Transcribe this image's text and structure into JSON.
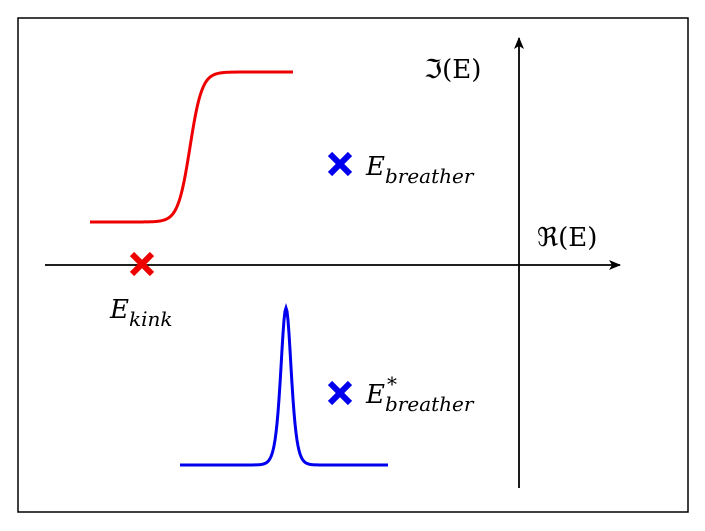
{
  "axes": {
    "imaginary_label": "ℑ(E)",
    "real_label": "ℜ(E)"
  },
  "points": [
    {
      "symbol": "E",
      "subscript": "kink"
    },
    {
      "symbol": "E",
      "subscript": "breather"
    },
    {
      "symbol": "E",
      "superscript": "*",
      "subscript": "breather"
    }
  ]
}
